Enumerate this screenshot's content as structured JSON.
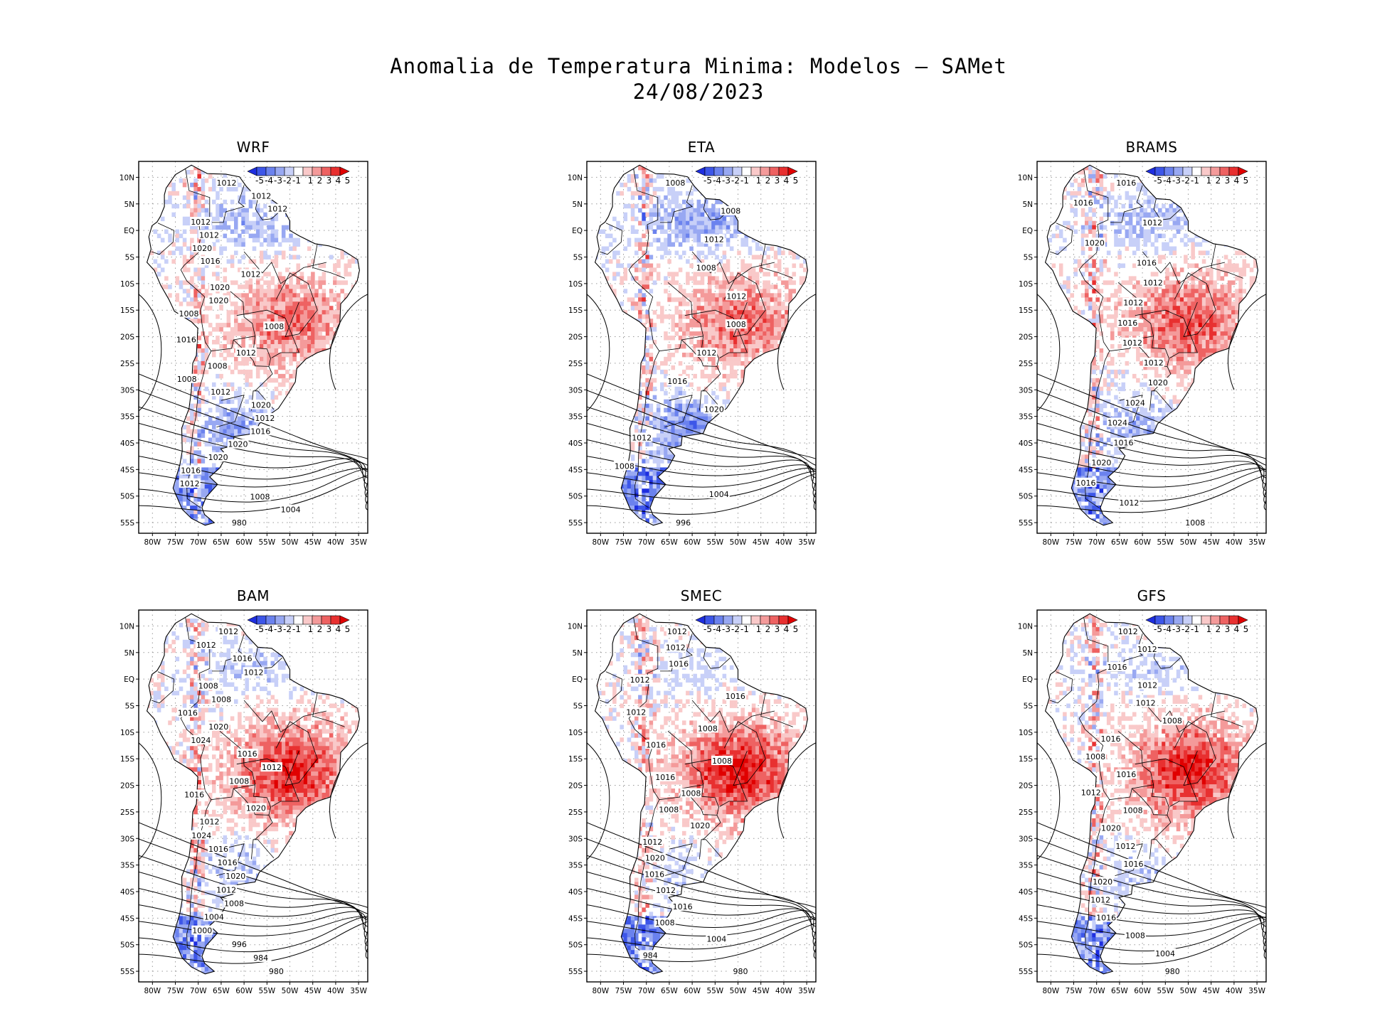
{
  "figure": {
    "title_line1": "Anomalia de Temperatura Minima: Modelos – SAMet",
    "title_line2": "24/08/2023"
  },
  "chart_data": {
    "type": "heatmap",
    "variable": "Minimum temperature anomaly (°C) with sea-level pressure contours (hPa)",
    "x_ticks": [
      "80W",
      "75W",
      "70W",
      "65W",
      "60W",
      "55W",
      "50W",
      "45W",
      "40W",
      "35W"
    ],
    "y_ticks": [
      "10N",
      "5N",
      "EQ",
      "5S",
      "10S",
      "15S",
      "20S",
      "25S",
      "30S",
      "35S",
      "40S",
      "45S",
      "50S",
      "55S"
    ],
    "xlim": [
      -83,
      -33
    ],
    "ylim": [
      -57,
      13
    ],
    "colorbar": {
      "labels": [
        "-5",
        "-4",
        "-3",
        "-2",
        "-1",
        "1",
        "2",
        "3",
        "4",
        "5"
      ],
      "colors": [
        "#1e2ee0",
        "#3d56e8",
        "#6b82ee",
        "#98a8f2",
        "#c8d0f8",
        "#ffffff",
        "#f9c9c9",
        "#f49a9a",
        "#ee6262",
        "#e83030",
        "#e00000"
      ]
    },
    "panels": [
      {
        "name": "WRF",
        "warm": 0.55,
        "cold": 0.4,
        "contour_labels": [
          "1012",
          "1012",
          "1012",
          "1012",
          "1012",
          "1020",
          "1016",
          "1012",
          "1020",
          "1020",
          "1008",
          "1008",
          "1016",
          "1012",
          "1008",
          "1008",
          "1012",
          "1020",
          "1012",
          "1016",
          "1020",
          "1020",
          "1016",
          "1012",
          "1008",
          "1004",
          "980"
        ]
      },
      {
        "name": "ETA",
        "warm": 0.55,
        "cold": 0.55,
        "contour_labels": [
          "1008",
          "1008",
          "1012",
          "1008",
          "1012",
          "1008",
          "1012",
          "1016",
          "1020",
          "1012",
          "1008",
          "1004",
          "996"
        ]
      },
      {
        "name": "BRAMS",
        "warm": 0.65,
        "cold": 0.35,
        "contour_labels": [
          "1016",
          "1016",
          "1012",
          "1020",
          "1016",
          "1012",
          "1012",
          "1016",
          "1012",
          "1012",
          "1020",
          "1024",
          "1024",
          "1016",
          "1020",
          "1016",
          "1012",
          "1008"
        ]
      },
      {
        "name": "BAM",
        "warm": 0.8,
        "cold": 0.25,
        "contour_labels": [
          "1012",
          "1012",
          "1016",
          "1012",
          "1008",
          "1008",
          "1016",
          "1020",
          "1024",
          "1016",
          "1012",
          "1008",
          "1016",
          "1020",
          "1012",
          "1024",
          "1016",
          "1016",
          "1020",
          "1012",
          "1008",
          "1004",
          "1000",
          "996",
          "984",
          "980"
        ]
      },
      {
        "name": "SMEC",
        "warm": 0.85,
        "cold": 0.15,
        "contour_labels": [
          "1012",
          "1012",
          "1016",
          "1012",
          "1016",
          "1012",
          "1008",
          "1016",
          "1008",
          "1016",
          "1008",
          "1008",
          "1020",
          "1012",
          "1020",
          "1016",
          "1012",
          "1016",
          "1008",
          "1004",
          "984",
          "980"
        ]
      },
      {
        "name": "GFS",
        "warm": 0.8,
        "cold": 0.2,
        "contour_labels": [
          "1012",
          "1012",
          "1016",
          "1012",
          "1012",
          "1008",
          "1016",
          "1008",
          "1016",
          "1012",
          "1008",
          "1020",
          "1012",
          "1016",
          "1020",
          "1012",
          "1016",
          "1008",
          "1004",
          "980"
        ]
      }
    ]
  }
}
